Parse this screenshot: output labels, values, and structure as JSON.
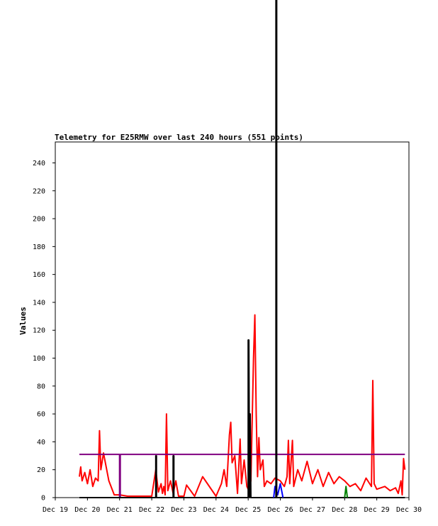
{
  "chart_data": {
    "type": "line",
    "title": "Telemetry for E25RMW over last 240 hours (551 points)",
    "xlabel": "",
    "ylabel": "Values",
    "xlim": [
      "2023-12-19T00:00",
      "2023-12-30T00:00"
    ],
    "ylim": [
      0,
      255
    ],
    "x_ticks": [
      "Dec 19",
      "Dec 20",
      "Dec 21",
      "Dec 22",
      "Dec 23",
      "Dec 24",
      "Dec 25",
      "Dec 26",
      "Dec 27",
      "Dec 28",
      "Dec 29",
      "Dec 30"
    ],
    "y_ticks": [
      0,
      20,
      40,
      60,
      80,
      100,
      120,
      140,
      160,
      180,
      200,
      220,
      240
    ],
    "grid": false,
    "legend": "none",
    "series": [
      {
        "color": "#ff0000",
        "points": [
          [
            "2023-12-19T18:00",
            15
          ],
          [
            "2023-12-19T19:00",
            22
          ],
          [
            "2023-12-19T20:00",
            12
          ],
          [
            "2023-12-19T22:00",
            18
          ],
          [
            "2023-12-20T00:00",
            10
          ],
          [
            "2023-12-20T02:00",
            20
          ],
          [
            "2023-12-20T04:00",
            8
          ],
          [
            "2023-12-20T06:00",
            14
          ],
          [
            "2023-12-20T08:00",
            12
          ],
          [
            "2023-12-20T09:00",
            48
          ],
          [
            "2023-12-20T10:00",
            20
          ],
          [
            "2023-12-20T11:00",
            26
          ],
          [
            "2023-12-20T12:00",
            32
          ],
          [
            "2023-12-20T16:00",
            12
          ],
          [
            "2023-12-20T20:00",
            2
          ],
          [
            "2023-12-21T00:00",
            2
          ],
          [
            "2023-12-21T06:00",
            1
          ],
          [
            "2023-12-22T00:00",
            1
          ],
          [
            "2023-12-22T03:00",
            20
          ],
          [
            "2023-12-22T05:00",
            4
          ],
          [
            "2023-12-22T07:00",
            10
          ],
          [
            "2023-12-22T08:00",
            3
          ],
          [
            "2023-12-22T09:00",
            8
          ],
          [
            "2023-12-22T10:00",
            2
          ],
          [
            "2023-12-22T11:00",
            60
          ],
          [
            "2023-12-22T12:00",
            5
          ],
          [
            "2023-12-22T14:00",
            12
          ],
          [
            "2023-12-22T16:00",
            3
          ],
          [
            "2023-12-22T18:00",
            12
          ],
          [
            "2023-12-22T20:00",
            1
          ],
          [
            "2023-12-23T00:00",
            1
          ],
          [
            "2023-12-23T02:00",
            9
          ],
          [
            "2023-12-23T08:00",
            1
          ],
          [
            "2023-12-23T14:00",
            15
          ],
          [
            "2023-12-24T00:00",
            1
          ],
          [
            "2023-12-24T04:00",
            10
          ],
          [
            "2023-12-24T06:00",
            20
          ],
          [
            "2023-12-24T08:00",
            8
          ],
          [
            "2023-12-24T10:00",
            45
          ],
          [
            "2023-12-24T11:00",
            54
          ],
          [
            "2023-12-24T12:00",
            25
          ],
          [
            "2023-12-24T14:00",
            30
          ],
          [
            "2023-12-24T16:00",
            3
          ],
          [
            "2023-12-24T18:00",
            42
          ],
          [
            "2023-12-24T19:00",
            10
          ],
          [
            "2023-12-24T21:00",
            27
          ],
          [
            "2023-12-24T23:00",
            8
          ],
          [
            "2023-12-25T00:00",
            6
          ],
          [
            "2023-12-25T02:00",
            12
          ],
          [
            "2023-12-25T04:00",
            100
          ],
          [
            "2023-12-25T05:00",
            131
          ],
          [
            "2023-12-25T06:00",
            60
          ],
          [
            "2023-12-25T07:00",
            15
          ],
          [
            "2023-12-25T08:00",
            43
          ],
          [
            "2023-12-25T09:00",
            20
          ],
          [
            "2023-12-25T11:00",
            27
          ],
          [
            "2023-12-25T12:00",
            8
          ],
          [
            "2023-12-25T14:00",
            12
          ],
          [
            "2023-12-25T17:00",
            10
          ],
          [
            "2023-12-25T20:00",
            14
          ],
          [
            "2023-12-26T00:00",
            12
          ],
          [
            "2023-12-26T03:00",
            8
          ],
          [
            "2023-12-26T05:00",
            15
          ],
          [
            "2023-12-26T06:00",
            41
          ],
          [
            "2023-12-26T07:00",
            10
          ],
          [
            "2023-12-26T09:00",
            41
          ],
          [
            "2023-12-26T10:00",
            8
          ],
          [
            "2023-12-26T13:00",
            20
          ],
          [
            "2023-12-26T16:00",
            12
          ],
          [
            "2023-12-26T20:00",
            26
          ],
          [
            "2023-12-27T00:00",
            10
          ],
          [
            "2023-12-27T04:00",
            20
          ],
          [
            "2023-12-27T08:00",
            8
          ],
          [
            "2023-12-27T12:00",
            18
          ],
          [
            "2023-12-27T16:00",
            10
          ],
          [
            "2023-12-27T20:00",
            15
          ],
          [
            "2023-12-28T00:00",
            12
          ],
          [
            "2023-12-28T04:00",
            8
          ],
          [
            "2023-12-28T08:00",
            10
          ],
          [
            "2023-12-28T12:00",
            5
          ],
          [
            "2023-12-28T16:00",
            14
          ],
          [
            "2023-12-28T20:00",
            8
          ],
          [
            "2023-12-28T21:00",
            84
          ],
          [
            "2023-12-28T22:00",
            10
          ],
          [
            "2023-12-29T00:00",
            6
          ],
          [
            "2023-12-29T06:00",
            8
          ],
          [
            "2023-12-29T10:00",
            5
          ],
          [
            "2023-12-29T14:00",
            7
          ],
          [
            "2023-12-29T16:00",
            3
          ],
          [
            "2023-12-29T18:00",
            12
          ],
          [
            "2023-12-29T19:00",
            2
          ],
          [
            "2023-12-29T20:00",
            28
          ],
          [
            "2023-12-29T21:00",
            20
          ]
        ]
      },
      {
        "color": "#800080",
        "points": [
          [
            "2023-12-19T18:00",
            31
          ],
          [
            "2023-12-21T00:00",
            31
          ],
          [
            "2023-12-21T00:00",
            0
          ],
          [
            "2023-12-21T00:30",
            0
          ],
          [
            "2023-12-21T00:30",
            31
          ],
          [
            "2023-12-29T21:00",
            31
          ]
        ]
      },
      {
        "color": "#000000",
        "points": [
          [
            "2023-12-19T18:00",
            0
          ],
          [
            "2023-12-22T03:00",
            0
          ],
          [
            "2023-12-22T03:00",
            30
          ],
          [
            "2023-12-22T03:30",
            30
          ],
          [
            "2023-12-22T03:30",
            0
          ],
          [
            "2023-12-22T16:00",
            0
          ],
          [
            "2023-12-22T16:00",
            30
          ],
          [
            "2023-12-22T16:30",
            30
          ],
          [
            "2023-12-22T16:30",
            0
          ],
          [
            "2023-12-25T00:00",
            0
          ],
          [
            "2023-12-25T00:00",
            113
          ],
          [
            "2023-12-25T00:30",
            113
          ],
          [
            "2023-12-25T01:00",
            0
          ],
          [
            "2023-12-25T01:30",
            60
          ],
          [
            "2023-12-25T02:00",
            0
          ],
          [
            "2023-12-29T21:00",
            0
          ]
        ]
      },
      {
        "color": "#0000ff",
        "points": [
          [
            "2023-12-25T19:00",
            0
          ],
          [
            "2023-12-25T20:00",
            8
          ],
          [
            "2023-12-25T22:00",
            2
          ],
          [
            "2023-12-26T00:00",
            10
          ],
          [
            "2023-12-26T02:00",
            0
          ]
        ]
      },
      {
        "color": "#008000",
        "points": [
          [
            "2023-12-28T00:00",
            0
          ],
          [
            "2023-12-28T01:00",
            8
          ],
          [
            "2023-12-28T02:00",
            0
          ]
        ]
      }
    ],
    "marker": {
      "color": "#000000",
      "x": "2023-12-25T21:00"
    }
  }
}
